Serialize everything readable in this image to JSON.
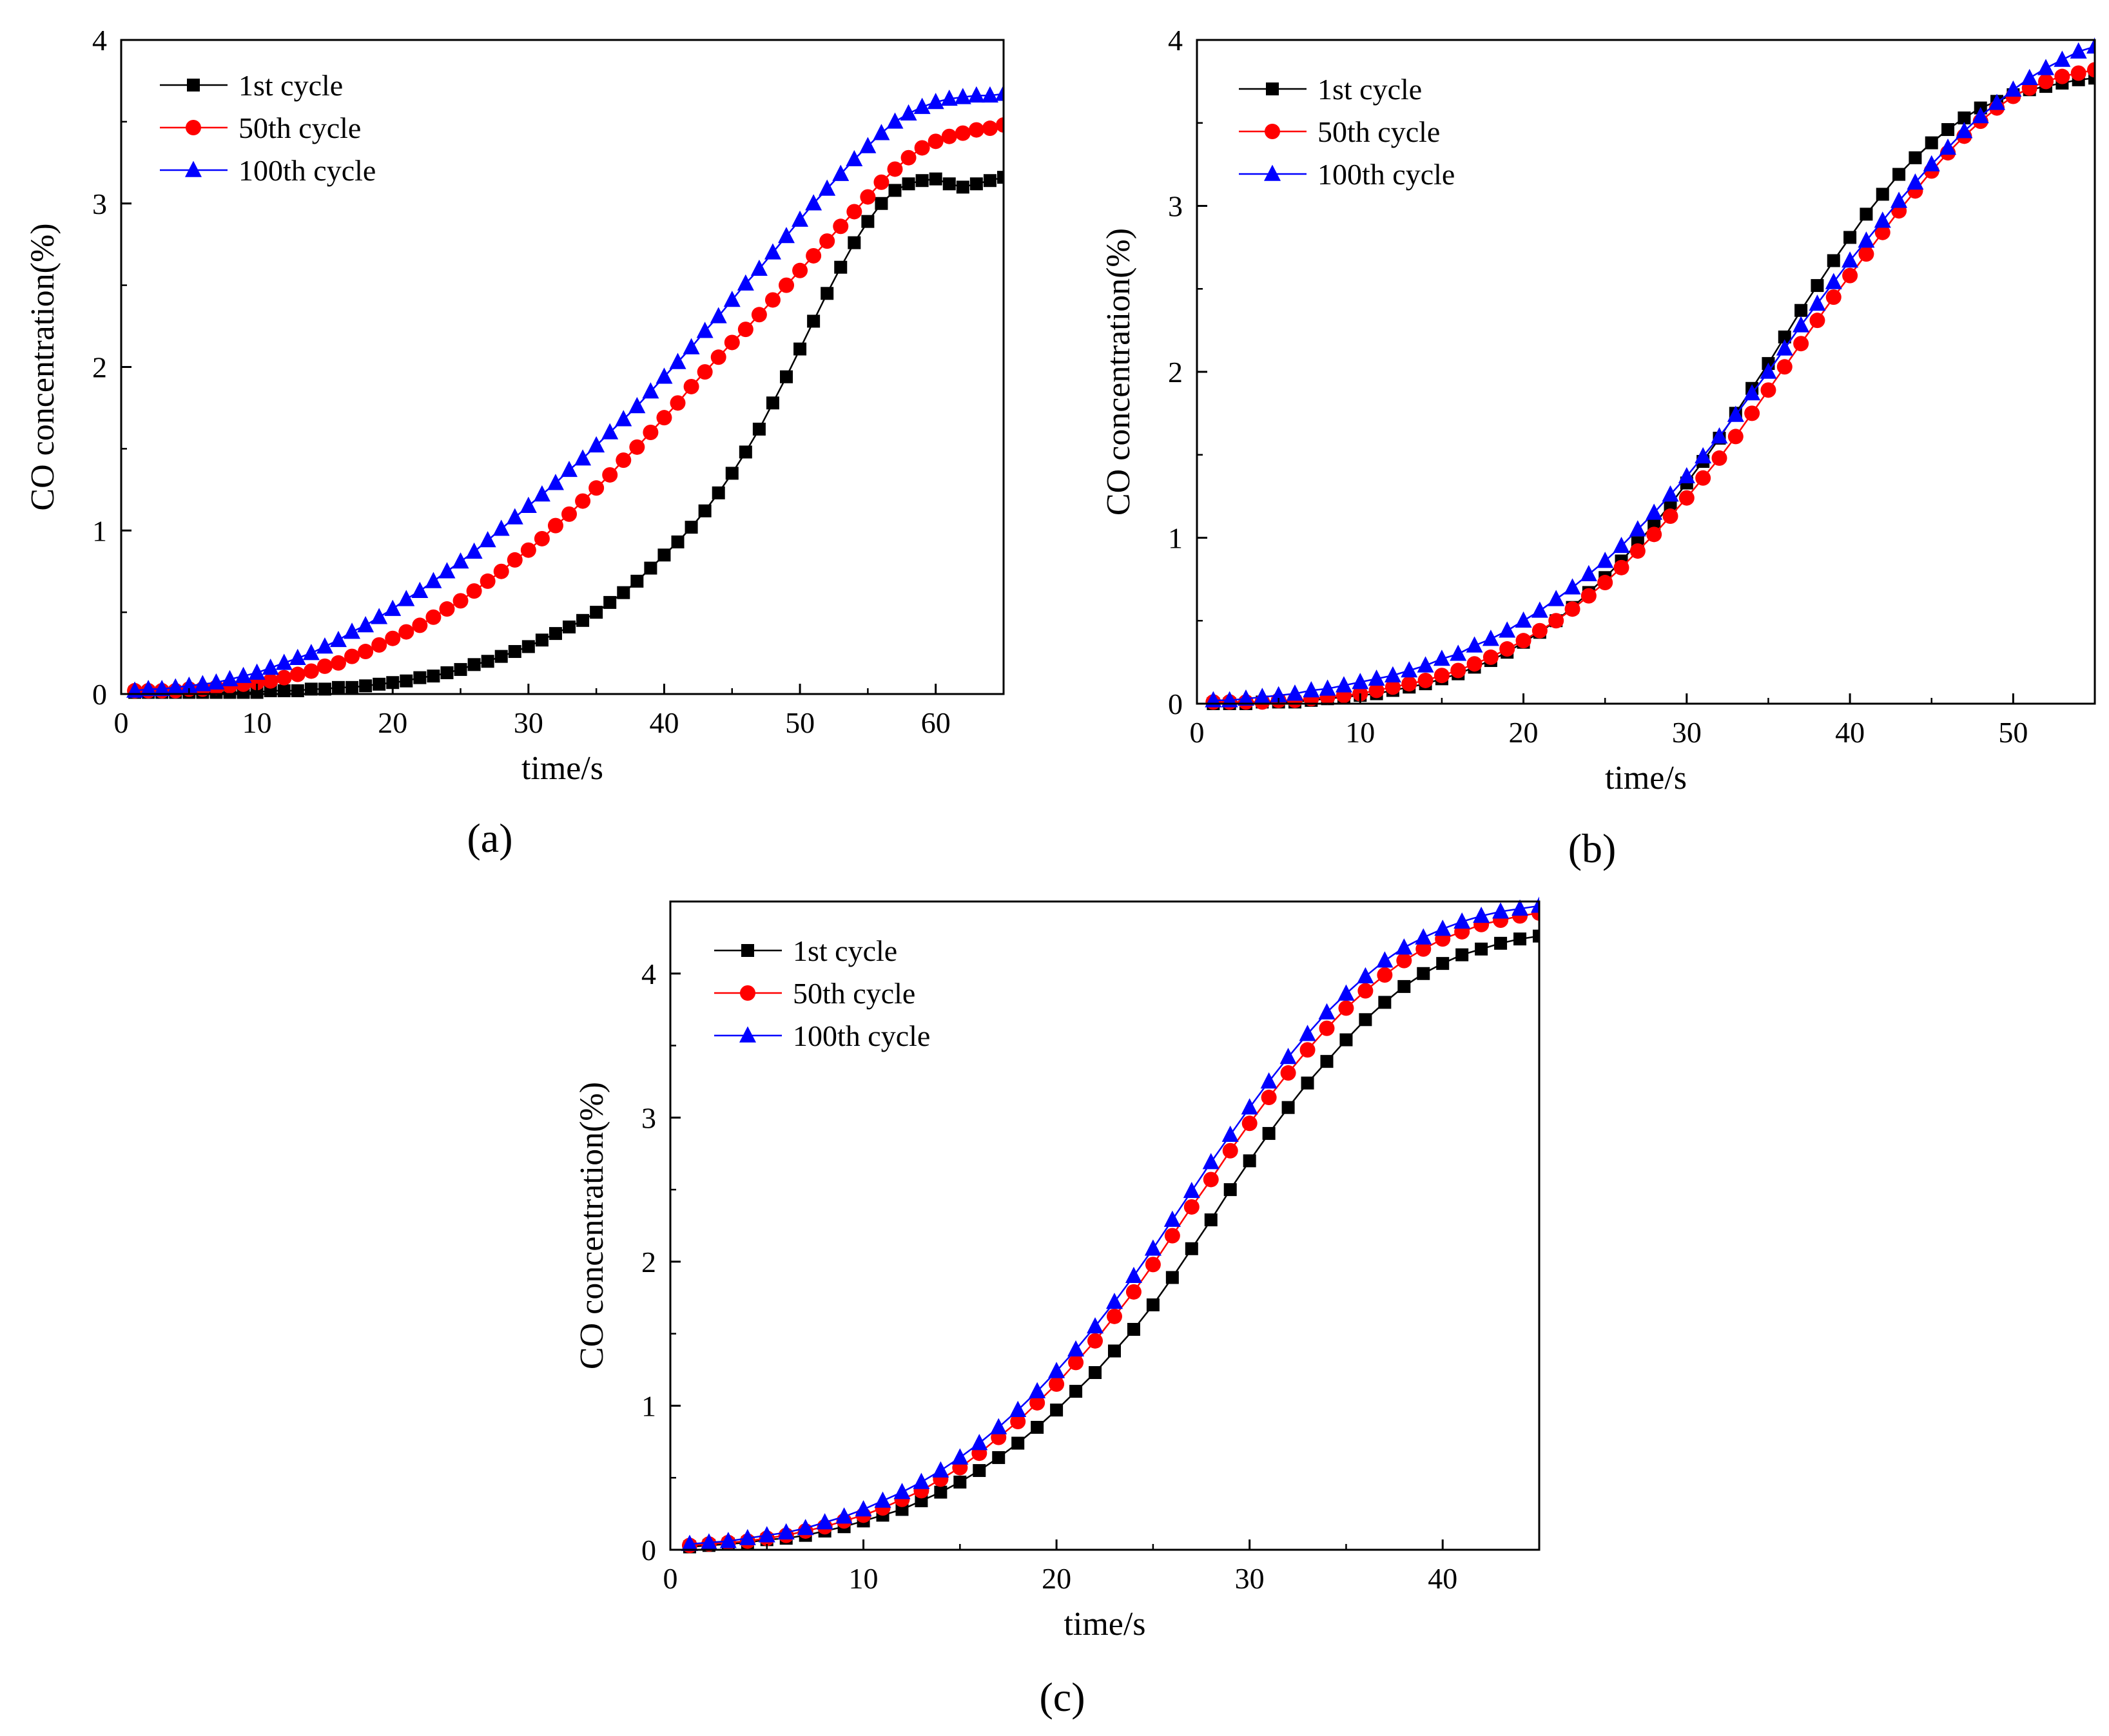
{
  "colors": {
    "series1": "#000000",
    "series2": "#ff0000",
    "series3": "#0000ff"
  },
  "chart_data": [
    {
      "type": "line",
      "panel_label": "(a)",
      "xlabel": "time/s",
      "ylabel": "CO concentration(%)",
      "xlim": [
        0,
        65
      ],
      "ylim": [
        0,
        4
      ],
      "xticks": [
        0,
        10,
        20,
        30,
        40,
        50,
        60
      ],
      "yticks": [
        0,
        1,
        2,
        3,
        4
      ],
      "grid": false,
      "legend": "top-left",
      "x": [
        1,
        2,
        3,
        4,
        5,
        6,
        7,
        8,
        9,
        10,
        11,
        12,
        13,
        14,
        15,
        16,
        17,
        18,
        19,
        20,
        21,
        22,
        23,
        24,
        25,
        26,
        27,
        28,
        29,
        30,
        31,
        32,
        33,
        34,
        35,
        36,
        37,
        38,
        39,
        40,
        41,
        42,
        43,
        44,
        45,
        46,
        47,
        48,
        49,
        50,
        51,
        52,
        53,
        54,
        55,
        56,
        57,
        58,
        59,
        60,
        61,
        62,
        63,
        64,
        65
      ],
      "series": [
        {
          "name": "1st cycle",
          "marker": "square",
          "color": "#000000",
          "values": [
            0.01,
            0.01,
            0.01,
            0.01,
            0.01,
            0.01,
            0.01,
            0.01,
            0.01,
            0.01,
            0.02,
            0.02,
            0.02,
            0.03,
            0.03,
            0.04,
            0.04,
            0.05,
            0.06,
            0.07,
            0.08,
            0.1,
            0.11,
            0.13,
            0.15,
            0.18,
            0.2,
            0.23,
            0.26,
            0.29,
            0.33,
            0.37,
            0.41,
            0.45,
            0.5,
            0.56,
            0.62,
            0.69,
            0.77,
            0.85,
            0.93,
            1.02,
            1.12,
            1.23,
            1.35,
            1.48,
            1.62,
            1.78,
            1.94,
            2.11,
            2.28,
            2.45,
            2.61,
            2.76,
            2.89,
            3.0,
            3.08,
            3.12,
            3.14,
            3.15,
            3.12,
            3.1,
            3.12,
            3.14,
            3.16
          ]
        },
        {
          "name": "50th cycle",
          "marker": "circle",
          "color": "#ff0000",
          "values": [
            0.02,
            0.02,
            0.02,
            0.02,
            0.03,
            0.03,
            0.04,
            0.05,
            0.06,
            0.07,
            0.08,
            0.1,
            0.12,
            0.14,
            0.17,
            0.19,
            0.23,
            0.26,
            0.3,
            0.34,
            0.38,
            0.42,
            0.47,
            0.52,
            0.57,
            0.63,
            0.69,
            0.75,
            0.82,
            0.88,
            0.95,
            1.03,
            1.1,
            1.18,
            1.26,
            1.34,
            1.43,
            1.51,
            1.6,
            1.69,
            1.78,
            1.88,
            1.97,
            2.06,
            2.15,
            2.23,
            2.32,
            2.41,
            2.5,
            2.59,
            2.68,
            2.77,
            2.86,
            2.95,
            3.04,
            3.13,
            3.21,
            3.28,
            3.34,
            3.38,
            3.41,
            3.43,
            3.45,
            3.46,
            3.48
          ]
        },
        {
          "name": "100th cycle",
          "marker": "triangle",
          "color": "#0000ff",
          "values": [
            0.02,
            0.03,
            0.03,
            0.04,
            0.05,
            0.06,
            0.07,
            0.09,
            0.11,
            0.13,
            0.16,
            0.19,
            0.22,
            0.25,
            0.29,
            0.33,
            0.38,
            0.42,
            0.47,
            0.52,
            0.58,
            0.63,
            0.69,
            0.75,
            0.81,
            0.87,
            0.94,
            1.01,
            1.08,
            1.15,
            1.22,
            1.29,
            1.37,
            1.44,
            1.52,
            1.6,
            1.68,
            1.76,
            1.85,
            1.94,
            2.03,
            2.12,
            2.22,
            2.31,
            2.41,
            2.51,
            2.6,
            2.7,
            2.8,
            2.9,
            3.0,
            3.09,
            3.18,
            3.27,
            3.35,
            3.43,
            3.5,
            3.55,
            3.59,
            3.62,
            3.64,
            3.65,
            3.66,
            3.66,
            3.67
          ]
        }
      ]
    },
    {
      "type": "line",
      "panel_label": "(b)",
      "xlabel": "time/s",
      "ylabel": "CO concentration(%)",
      "xlim": [
        0,
        55
      ],
      "ylim": [
        0,
        4
      ],
      "xticks": [
        0,
        10,
        20,
        30,
        40,
        50
      ],
      "yticks": [
        0,
        1,
        2,
        3,
        4
      ],
      "grid": false,
      "legend": "top-left",
      "x": [
        1,
        2,
        3,
        4,
        5,
        6,
        7,
        8,
        9,
        10,
        11,
        12,
        13,
        14,
        15,
        16,
        17,
        18,
        19,
        20,
        21,
        22,
        23,
        24,
        25,
        26,
        27,
        28,
        29,
        30,
        31,
        32,
        33,
        34,
        35,
        36,
        37,
        38,
        39,
        40,
        41,
        42,
        43,
        44,
        45,
        46,
        47,
        48,
        49,
        50,
        51,
        52,
        53,
        54,
        55
      ],
      "series": [
        {
          "name": "1st cycle",
          "marker": "square",
          "color": "#000000",
          "values": [
            0.0,
            0.0,
            0.0,
            0.01,
            0.01,
            0.01,
            0.02,
            0.03,
            0.04,
            0.05,
            0.06,
            0.08,
            0.1,
            0.12,
            0.15,
            0.18,
            0.22,
            0.26,
            0.31,
            0.37,
            0.43,
            0.5,
            0.58,
            0.67,
            0.76,
            0.86,
            0.97,
            1.08,
            1.2,
            1.33,
            1.46,
            1.6,
            1.75,
            1.9,
            2.05,
            2.21,
            2.37,
            2.52,
            2.67,
            2.81,
            2.95,
            3.07,
            3.19,
            3.29,
            3.38,
            3.46,
            3.53,
            3.59,
            3.63,
            3.67,
            3.7,
            3.72,
            3.74,
            3.76,
            3.77
          ]
        },
        {
          "name": "50th cycle",
          "marker": "circle",
          "color": "#ff0000",
          "values": [
            0.01,
            0.01,
            0.01,
            0.01,
            0.02,
            0.02,
            0.03,
            0.04,
            0.05,
            0.06,
            0.08,
            0.1,
            0.12,
            0.14,
            0.17,
            0.2,
            0.24,
            0.28,
            0.33,
            0.38,
            0.44,
            0.5,
            0.57,
            0.65,
            0.73,
            0.82,
            0.92,
            1.02,
            1.13,
            1.24,
            1.36,
            1.48,
            1.61,
            1.75,
            1.89,
            2.03,
            2.17,
            2.31,
            2.45,
            2.58,
            2.71,
            2.84,
            2.97,
            3.09,
            3.21,
            3.32,
            3.42,
            3.51,
            3.59,
            3.66,
            3.71,
            3.75,
            3.78,
            3.8,
            3.82
          ]
        },
        {
          "name": "100th cycle",
          "marker": "triangle",
          "color": "#0000ff",
          "values": [
            0.02,
            0.02,
            0.03,
            0.04,
            0.05,
            0.06,
            0.08,
            0.09,
            0.11,
            0.13,
            0.15,
            0.17,
            0.2,
            0.23,
            0.27,
            0.3,
            0.35,
            0.39,
            0.44,
            0.5,
            0.56,
            0.63,
            0.7,
            0.78,
            0.86,
            0.95,
            1.05,
            1.15,
            1.26,
            1.37,
            1.49,
            1.61,
            1.74,
            1.87,
            2.0,
            2.14,
            2.28,
            2.41,
            2.54,
            2.67,
            2.79,
            2.91,
            3.03,
            3.14,
            3.25,
            3.35,
            3.45,
            3.54,
            3.62,
            3.7,
            3.77,
            3.83,
            3.88,
            3.93,
            3.96
          ]
        }
      ]
    },
    {
      "type": "line",
      "panel_label": "(c)",
      "xlabel": "time/s",
      "ylabel": "CO concentration(%)",
      "xlim": [
        0,
        45
      ],
      "ylim": [
        0,
        4.5
      ],
      "xticks": [
        0,
        10,
        20,
        30,
        40
      ],
      "yticks": [
        0,
        1,
        2,
        3,
        4
      ],
      "grid": false,
      "legend": "top-left",
      "x": [
        1,
        2,
        3,
        4,
        5,
        6,
        7,
        8,
        9,
        10,
        11,
        12,
        13,
        14,
        15,
        16,
        17,
        18,
        19,
        20,
        21,
        22,
        23,
        24,
        25,
        26,
        27,
        28,
        29,
        30,
        31,
        32,
        33,
        34,
        35,
        36,
        37,
        38,
        39,
        40,
        41,
        42,
        43,
        44,
        45
      ],
      "series": [
        {
          "name": "1st cycle",
          "marker": "square",
          "color": "#000000",
          "values": [
            0.02,
            0.03,
            0.04,
            0.05,
            0.07,
            0.08,
            0.1,
            0.13,
            0.16,
            0.2,
            0.24,
            0.28,
            0.34,
            0.4,
            0.47,
            0.55,
            0.64,
            0.74,
            0.85,
            0.97,
            1.1,
            1.23,
            1.38,
            1.53,
            1.7,
            1.89,
            2.09,
            2.29,
            2.5,
            2.7,
            2.89,
            3.07,
            3.24,
            3.39,
            3.54,
            3.68,
            3.8,
            3.91,
            4.0,
            4.07,
            4.13,
            4.17,
            4.21,
            4.24,
            4.26
          ]
        },
        {
          "name": "50th cycle",
          "marker": "circle",
          "color": "#ff0000",
          "values": [
            0.03,
            0.04,
            0.05,
            0.06,
            0.08,
            0.1,
            0.13,
            0.16,
            0.2,
            0.24,
            0.29,
            0.35,
            0.41,
            0.49,
            0.57,
            0.67,
            0.78,
            0.89,
            1.02,
            1.15,
            1.3,
            1.45,
            1.62,
            1.79,
            1.98,
            2.18,
            2.38,
            2.57,
            2.77,
            2.96,
            3.14,
            3.31,
            3.47,
            3.62,
            3.76,
            3.88,
            3.99,
            4.09,
            4.17,
            4.24,
            4.29,
            4.34,
            4.37,
            4.4,
            4.42
          ]
        },
        {
          "name": "100th cycle",
          "marker": "triangle",
          "color": "#0000ff",
          "values": [
            0.04,
            0.05,
            0.06,
            0.08,
            0.1,
            0.12,
            0.15,
            0.19,
            0.23,
            0.28,
            0.34,
            0.4,
            0.47,
            0.55,
            0.64,
            0.74,
            0.85,
            0.97,
            1.1,
            1.24,
            1.39,
            1.55,
            1.72,
            1.9,
            2.09,
            2.29,
            2.49,
            2.69,
            2.88,
            3.07,
            3.25,
            3.42,
            3.58,
            3.73,
            3.86,
            3.98,
            4.09,
            4.18,
            4.25,
            4.31,
            4.36,
            4.4,
            4.43,
            4.45,
            4.47
          ]
        }
      ]
    }
  ]
}
